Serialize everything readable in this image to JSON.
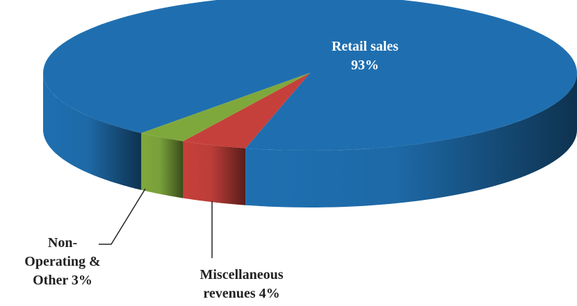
{
  "chart_data": {
    "type": "pie3d",
    "categories": [
      "Retail sales",
      "Miscellaneous revenues",
      "Non-Operating & Other"
    ],
    "values": [
      93,
      4,
      3
    ],
    "value_labels": [
      "93%",
      "4%",
      "3%"
    ],
    "colors": [
      "#1f6fb0",
      "#c6403b",
      "#7fa83c"
    ]
  }
}
